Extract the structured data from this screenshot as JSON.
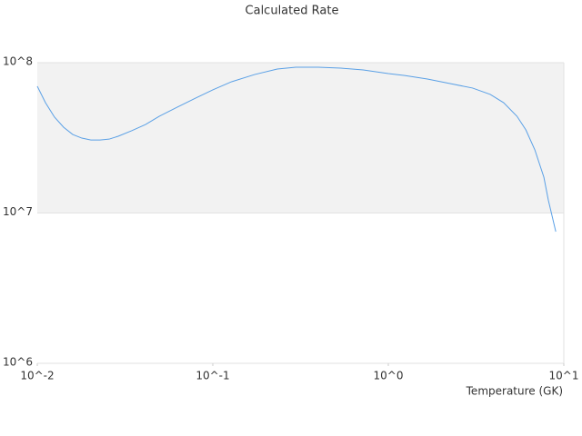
{
  "chart_data": {
    "type": "line",
    "title": "Calculated Rate",
    "x_label": "Temperature (GK)",
    "x_log": true,
    "y_log": true,
    "xlim": [
      0.01,
      10
    ],
    "ylim": [
      1000000,
      100000000
    ],
    "xticks": [
      {
        "value": 0.01,
        "label": "10^-2"
      },
      {
        "value": 0.1,
        "label": "10^-1"
      },
      {
        "value": 1,
        "label": "10^0"
      },
      {
        "value": 10,
        "label": "10^1"
      }
    ],
    "yticks": [
      {
        "value": 1000000,
        "label": "10^6"
      },
      {
        "value": 10000000,
        "label": "10^7"
      },
      {
        "value": 100000000,
        "label": "10^8"
      }
    ],
    "band_color": "#f2f2f2",
    "x": [
      0.01,
      0.01113,
      0.01254,
      0.01413,
      0.01592,
      0.01794,
      0.02021,
      0.02277,
      0.02565,
      0.0289,
      0.0346,
      0.0414,
      0.0495,
      0.0628,
      0.0797,
      0.1,
      0.128,
      0.173,
      0.233,
      0.297,
      0.399,
      0.536,
      0.72,
      1.0,
      1.24,
      1.67,
      2.25,
      3.02,
      3.81,
      4.54,
      5.41,
      6.08,
      6.84,
      7.7,
      8.16,
      9.0
    ],
    "series": [
      {
        "color": "#5aa0e6",
        "values": [
          69700000,
          54200000,
          43400000,
          37200000,
          33300000,
          31500000,
          30600000,
          30600000,
          31000000,
          32400000,
          35300000,
          38800000,
          44000000,
          50600000,
          58100000,
          65900000,
          74700000,
          83400000,
          90700000,
          93300000,
          93300000,
          92000000,
          89500000,
          84600000,
          82200000,
          77800000,
          72600000,
          67800000,
          61500000,
          54200000,
          44000000,
          35700000,
          26300000,
          17300000,
          12200000,
          7520000
        ]
      }
    ]
  }
}
